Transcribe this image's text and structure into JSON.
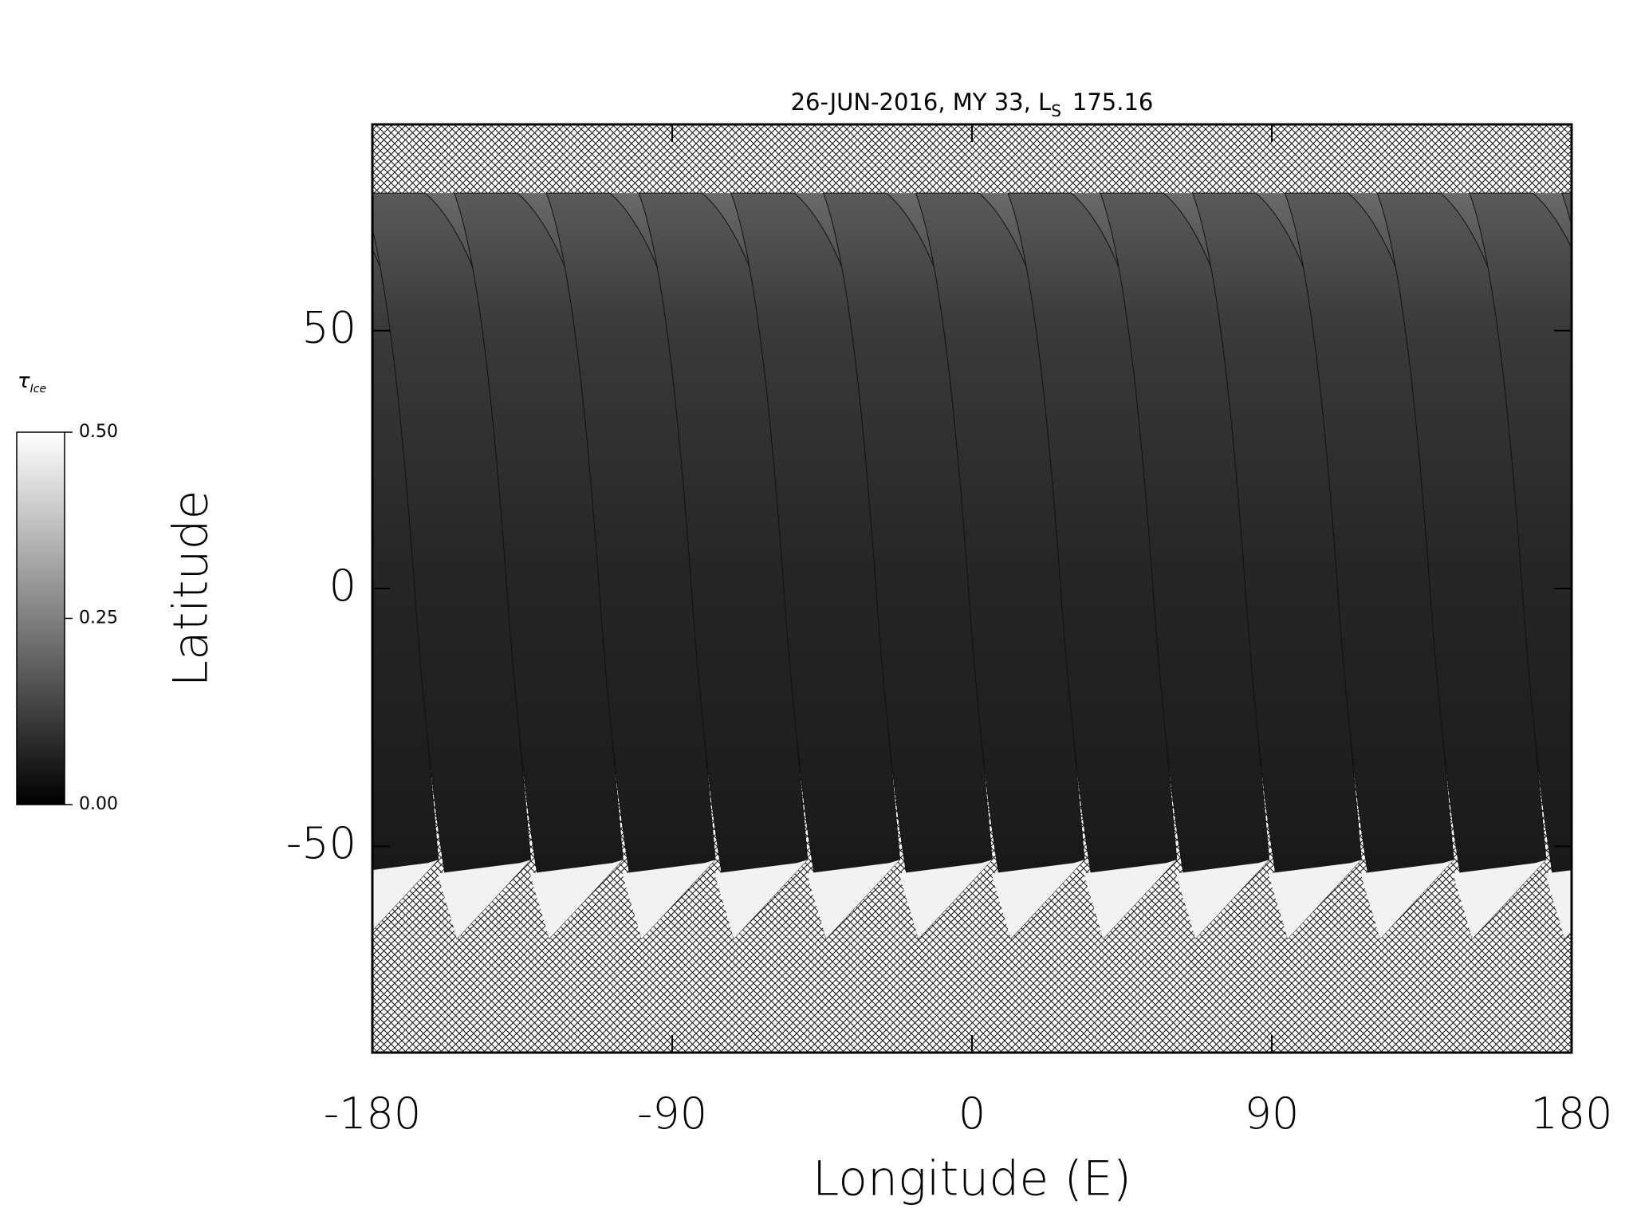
{
  "chart_data": {
    "type": "map",
    "title": "26-JUN-2016, MY 33,  L",
    "title_subscript": "S",
    "title_value": "175.16",
    "x_label": "Longitude (E)",
    "y_label": "Latitude",
    "xlim": [
      -180,
      180
    ],
    "ylim": [
      -90,
      90
    ],
    "xticks": [
      -180,
      -90,
      0,
      90,
      180
    ],
    "yticks": [
      -50,
      0,
      50
    ],
    "colorbar": {
      "label": "τ",
      "label_subscript": "Ice",
      "clim": [
        0,
        0.5
      ],
      "ticks": [
        {
          "value": 0,
          "label": "0.00"
        },
        {
          "value": 0.25,
          "label": "0.25"
        },
        {
          "value": 0.5,
          "label": "0.50"
        }
      ]
    }
  }
}
